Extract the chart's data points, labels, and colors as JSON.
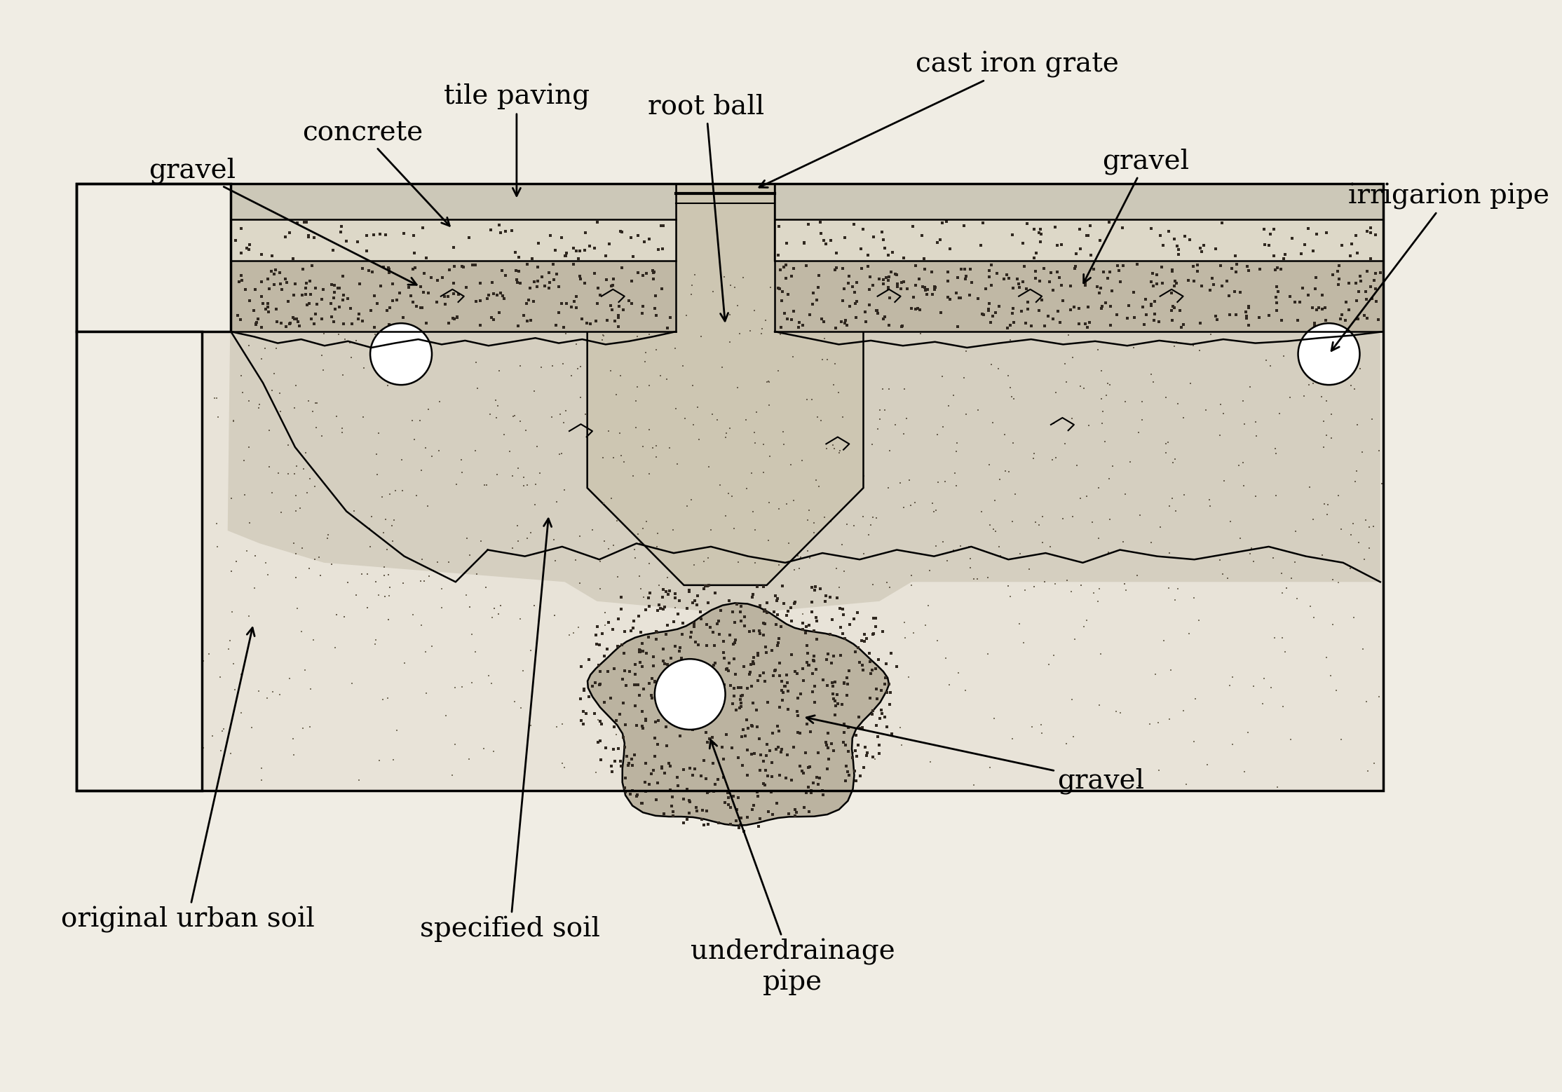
{
  "bg_color": "#f0ede4",
  "border_color": "#000000",
  "labels": {
    "tile_paving": "tile paving",
    "concrete": "concrete",
    "gravel_left": "gravel",
    "root_ball": "root ball",
    "cast_iron_grate": "cast iron grate",
    "gravel_right": "gravel",
    "irrigation_pipe": "irrigarion pipe",
    "original_urban_soil": "original urban soil",
    "specified_soil": "specified soil",
    "underdrainage_pipe": "underdrainage\npipe",
    "gravel_bottom": "gravel"
  },
  "colors": {
    "page_bg": "#f0ede4",
    "urban_soil_bg": "#e8e3d8",
    "specified_soil": "#d5cfc0",
    "dense_gravel": "#c0b8a5",
    "tile_concrete": "#ddd8c8",
    "root_ball_fill": "#cdc6b2",
    "white_box": "#f0ede4",
    "underdrain_gravel": "#bbb3a0"
  }
}
